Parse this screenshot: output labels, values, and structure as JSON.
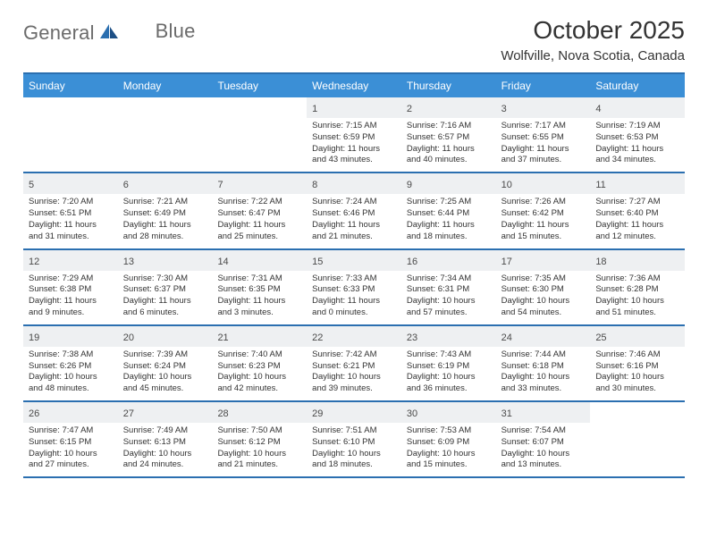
{
  "brand": {
    "word1": "General",
    "word2": "Blue"
  },
  "header": {
    "title": "October 2025",
    "location": "Wolfville, Nova Scotia, Canada"
  },
  "colors": {
    "accent": "#2b6fb0",
    "header_blue": "#3b8fd6",
    "daynum_bg": "#eef0f2",
    "text": "#333333",
    "logo_gray": "#6b6b6b",
    "background": "#ffffff"
  },
  "dow": [
    "Sunday",
    "Monday",
    "Tuesday",
    "Wednesday",
    "Thursday",
    "Friday",
    "Saturday"
  ],
  "weeks": [
    [
      {
        "day": "",
        "lines": [
          "",
          "",
          "",
          ""
        ]
      },
      {
        "day": "",
        "lines": [
          "",
          "",
          "",
          ""
        ]
      },
      {
        "day": "",
        "lines": [
          "",
          "",
          "",
          ""
        ]
      },
      {
        "day": "1",
        "lines": [
          "Sunrise: 7:15 AM",
          "Sunset: 6:59 PM",
          "Daylight: 11 hours",
          "and 43 minutes."
        ]
      },
      {
        "day": "2",
        "lines": [
          "Sunrise: 7:16 AM",
          "Sunset: 6:57 PM",
          "Daylight: 11 hours",
          "and 40 minutes."
        ]
      },
      {
        "day": "3",
        "lines": [
          "Sunrise: 7:17 AM",
          "Sunset: 6:55 PM",
          "Daylight: 11 hours",
          "and 37 minutes."
        ]
      },
      {
        "day": "4",
        "lines": [
          "Sunrise: 7:19 AM",
          "Sunset: 6:53 PM",
          "Daylight: 11 hours",
          "and 34 minutes."
        ]
      }
    ],
    [
      {
        "day": "5",
        "lines": [
          "Sunrise: 7:20 AM",
          "Sunset: 6:51 PM",
          "Daylight: 11 hours",
          "and 31 minutes."
        ]
      },
      {
        "day": "6",
        "lines": [
          "Sunrise: 7:21 AM",
          "Sunset: 6:49 PM",
          "Daylight: 11 hours",
          "and 28 minutes."
        ]
      },
      {
        "day": "7",
        "lines": [
          "Sunrise: 7:22 AM",
          "Sunset: 6:47 PM",
          "Daylight: 11 hours",
          "and 25 minutes."
        ]
      },
      {
        "day": "8",
        "lines": [
          "Sunrise: 7:24 AM",
          "Sunset: 6:46 PM",
          "Daylight: 11 hours",
          "and 21 minutes."
        ]
      },
      {
        "day": "9",
        "lines": [
          "Sunrise: 7:25 AM",
          "Sunset: 6:44 PM",
          "Daylight: 11 hours",
          "and 18 minutes."
        ]
      },
      {
        "day": "10",
        "lines": [
          "Sunrise: 7:26 AM",
          "Sunset: 6:42 PM",
          "Daylight: 11 hours",
          "and 15 minutes."
        ]
      },
      {
        "day": "11",
        "lines": [
          "Sunrise: 7:27 AM",
          "Sunset: 6:40 PM",
          "Daylight: 11 hours",
          "and 12 minutes."
        ]
      }
    ],
    [
      {
        "day": "12",
        "lines": [
          "Sunrise: 7:29 AM",
          "Sunset: 6:38 PM",
          "Daylight: 11 hours",
          "and 9 minutes."
        ]
      },
      {
        "day": "13",
        "lines": [
          "Sunrise: 7:30 AM",
          "Sunset: 6:37 PM",
          "Daylight: 11 hours",
          "and 6 minutes."
        ]
      },
      {
        "day": "14",
        "lines": [
          "Sunrise: 7:31 AM",
          "Sunset: 6:35 PM",
          "Daylight: 11 hours",
          "and 3 minutes."
        ]
      },
      {
        "day": "15",
        "lines": [
          "Sunrise: 7:33 AM",
          "Sunset: 6:33 PM",
          "Daylight: 11 hours",
          "and 0 minutes."
        ]
      },
      {
        "day": "16",
        "lines": [
          "Sunrise: 7:34 AM",
          "Sunset: 6:31 PM",
          "Daylight: 10 hours",
          "and 57 minutes."
        ]
      },
      {
        "day": "17",
        "lines": [
          "Sunrise: 7:35 AM",
          "Sunset: 6:30 PM",
          "Daylight: 10 hours",
          "and 54 minutes."
        ]
      },
      {
        "day": "18",
        "lines": [
          "Sunrise: 7:36 AM",
          "Sunset: 6:28 PM",
          "Daylight: 10 hours",
          "and 51 minutes."
        ]
      }
    ],
    [
      {
        "day": "19",
        "lines": [
          "Sunrise: 7:38 AM",
          "Sunset: 6:26 PM",
          "Daylight: 10 hours",
          "and 48 minutes."
        ]
      },
      {
        "day": "20",
        "lines": [
          "Sunrise: 7:39 AM",
          "Sunset: 6:24 PM",
          "Daylight: 10 hours",
          "and 45 minutes."
        ]
      },
      {
        "day": "21",
        "lines": [
          "Sunrise: 7:40 AM",
          "Sunset: 6:23 PM",
          "Daylight: 10 hours",
          "and 42 minutes."
        ]
      },
      {
        "day": "22",
        "lines": [
          "Sunrise: 7:42 AM",
          "Sunset: 6:21 PM",
          "Daylight: 10 hours",
          "and 39 minutes."
        ]
      },
      {
        "day": "23",
        "lines": [
          "Sunrise: 7:43 AM",
          "Sunset: 6:19 PM",
          "Daylight: 10 hours",
          "and 36 minutes."
        ]
      },
      {
        "day": "24",
        "lines": [
          "Sunrise: 7:44 AM",
          "Sunset: 6:18 PM",
          "Daylight: 10 hours",
          "and 33 minutes."
        ]
      },
      {
        "day": "25",
        "lines": [
          "Sunrise: 7:46 AM",
          "Sunset: 6:16 PM",
          "Daylight: 10 hours",
          "and 30 minutes."
        ]
      }
    ],
    [
      {
        "day": "26",
        "lines": [
          "Sunrise: 7:47 AM",
          "Sunset: 6:15 PM",
          "Daylight: 10 hours",
          "and 27 minutes."
        ]
      },
      {
        "day": "27",
        "lines": [
          "Sunrise: 7:49 AM",
          "Sunset: 6:13 PM",
          "Daylight: 10 hours",
          "and 24 minutes."
        ]
      },
      {
        "day": "28",
        "lines": [
          "Sunrise: 7:50 AM",
          "Sunset: 6:12 PM",
          "Daylight: 10 hours",
          "and 21 minutes."
        ]
      },
      {
        "day": "29",
        "lines": [
          "Sunrise: 7:51 AM",
          "Sunset: 6:10 PM",
          "Daylight: 10 hours",
          "and 18 minutes."
        ]
      },
      {
        "day": "30",
        "lines": [
          "Sunrise: 7:53 AM",
          "Sunset: 6:09 PM",
          "Daylight: 10 hours",
          "and 15 minutes."
        ]
      },
      {
        "day": "31",
        "lines": [
          "Sunrise: 7:54 AM",
          "Sunset: 6:07 PM",
          "Daylight: 10 hours",
          "and 13 minutes."
        ]
      },
      {
        "day": "",
        "lines": [
          "",
          "",
          "",
          ""
        ]
      }
    ]
  ]
}
